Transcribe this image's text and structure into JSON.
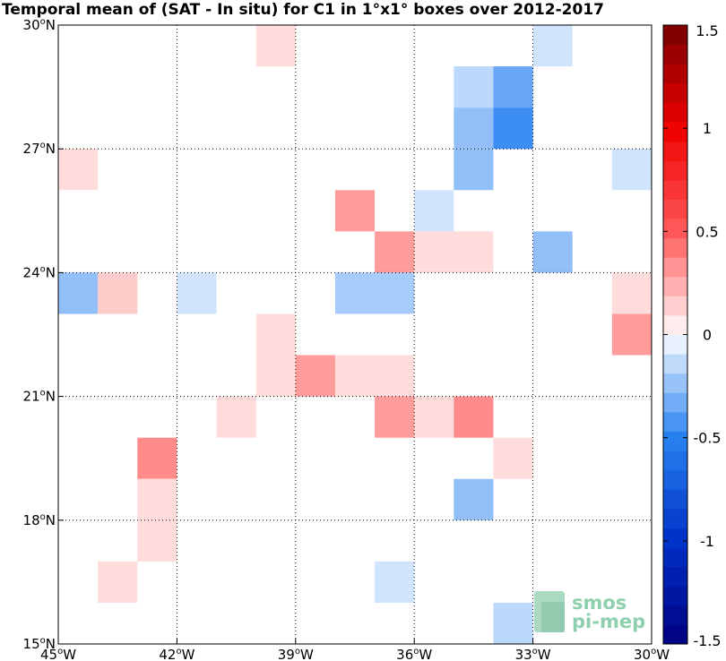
{
  "chart_data": {
    "type": "heatmap",
    "title": "Temporal mean of (SAT - In situ) for C1 in 1°x1° boxes over 2012-2017",
    "xlim": [
      -45,
      -30
    ],
    "ylim": [
      15,
      30
    ],
    "grid": true,
    "x_ticks": [
      {
        "value": -45,
        "label": "45",
        "suffix": "W"
      },
      {
        "value": -42,
        "label": "42",
        "suffix": "W"
      },
      {
        "value": -39,
        "label": "39",
        "suffix": "W"
      },
      {
        "value": -36,
        "label": "36",
        "suffix": "W"
      },
      {
        "value": -33,
        "label": "33",
        "suffix": "W"
      },
      {
        "value": -30,
        "label": "30",
        "suffix": "W"
      }
    ],
    "y_ticks": [
      {
        "value": 15,
        "label": "15",
        "suffix": "N"
      },
      {
        "value": 18,
        "label": "18",
        "suffix": "N"
      },
      {
        "value": 21,
        "label": "21",
        "suffix": "N"
      },
      {
        "value": 24,
        "label": "24",
        "suffix": "N"
      },
      {
        "value": 27,
        "label": "27",
        "suffix": "N"
      },
      {
        "value": 30,
        "label": "30",
        "suffix": "N"
      }
    ],
    "colorbar": {
      "range": [
        -1.5,
        1.5
      ],
      "levels": 32,
      "ticks": [
        {
          "value": 1.5,
          "label": "1.5"
        },
        {
          "value": 1,
          "label": "1"
        },
        {
          "value": 0.5,
          "label": "0.5"
        },
        {
          "value": 0,
          "label": "0"
        },
        {
          "value": -0.5,
          "label": "-0.5"
        },
        {
          "value": -1,
          "label": "-1"
        },
        {
          "value": -1.5,
          "label": "-1.5"
        }
      ]
    },
    "cells": [
      {
        "lon": -39.5,
        "lat": 29.5,
        "value": 0.1
      },
      {
        "lon": -32.5,
        "lat": 29.5,
        "value": -0.1
      },
      {
        "lon": -34.5,
        "lat": 28.5,
        "value": -0.15
      },
      {
        "lon": -33.5,
        "lat": 28.5,
        "value": -0.35
      },
      {
        "lon": -34.5,
        "lat": 27.5,
        "value": -0.25
      },
      {
        "lon": -33.5,
        "lat": 27.5,
        "value": -0.45
      },
      {
        "lon": -44.5,
        "lat": 26.5,
        "value": 0.1
      },
      {
        "lon": -34.5,
        "lat": 26.5,
        "value": -0.25
      },
      {
        "lon": -30.5,
        "lat": 26.5,
        "value": -0.1
      },
      {
        "lon": -37.5,
        "lat": 25.5,
        "value": 0.3
      },
      {
        "lon": -35.5,
        "lat": 25.5,
        "value": -0.1
      },
      {
        "lon": -36.5,
        "lat": 24.5,
        "value": 0.3
      },
      {
        "lon": -35.5,
        "lat": 24.5,
        "value": 0.1
      },
      {
        "lon": -34.5,
        "lat": 24.5,
        "value": 0.1
      },
      {
        "lon": -32.5,
        "lat": 24.5,
        "value": -0.25
      },
      {
        "lon": -44.5,
        "lat": 23.5,
        "value": -0.25
      },
      {
        "lon": -43.5,
        "lat": 23.5,
        "value": 0.15
      },
      {
        "lon": -41.5,
        "lat": 23.5,
        "value": -0.1
      },
      {
        "lon": -37.5,
        "lat": 23.5,
        "value": -0.2
      },
      {
        "lon": -36.5,
        "lat": 23.5,
        "value": -0.2
      },
      {
        "lon": -30.5,
        "lat": 23.5,
        "value": 0.1
      },
      {
        "lon": -39.5,
        "lat": 22.5,
        "value": 0.1
      },
      {
        "lon": -30.5,
        "lat": 22.5,
        "value": 0.3
      },
      {
        "lon": -39.5,
        "lat": 21.5,
        "value": 0.1
      },
      {
        "lon": -38.5,
        "lat": 21.5,
        "value": 0.3
      },
      {
        "lon": -37.5,
        "lat": 21.5,
        "value": 0.1
      },
      {
        "lon": -36.5,
        "lat": 21.5,
        "value": 0.1
      },
      {
        "lon": -40.5,
        "lat": 20.5,
        "value": 0.1
      },
      {
        "lon": -36.5,
        "lat": 20.5,
        "value": 0.3
      },
      {
        "lon": -35.5,
        "lat": 20.5,
        "value": 0.1
      },
      {
        "lon": -34.5,
        "lat": 20.5,
        "value": 0.35
      },
      {
        "lon": -42.5,
        "lat": 19.5,
        "value": 0.35
      },
      {
        "lon": -33.5,
        "lat": 19.5,
        "value": 0.1
      },
      {
        "lon": -42.5,
        "lat": 18.5,
        "value": 0.1
      },
      {
        "lon": -34.5,
        "lat": 18.5,
        "value": -0.25
      },
      {
        "lon": -42.5,
        "lat": 17.5,
        "value": 0.1
      },
      {
        "lon": -43.5,
        "lat": 16.5,
        "value": 0.1
      },
      {
        "lon": -36.5,
        "lat": 16.5,
        "value": -0.1
      },
      {
        "lon": -33.5,
        "lat": 15.5,
        "value": -0.15
      }
    ]
  },
  "logo": {
    "line1": "smos",
    "line2": "pi-mep",
    "color": "#8ecfae"
  }
}
